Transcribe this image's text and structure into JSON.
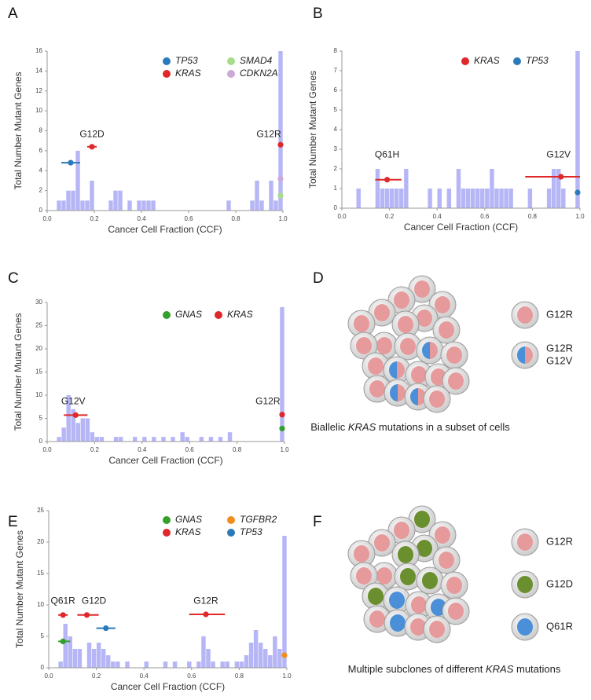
{
  "chart_data": [
    {
      "type": "histogram",
      "panel": "A",
      "xlabel": "Cancer Cell Fraction (CCF)",
      "ylabel": "Total Number Mutant Genes",
      "color": "#b6b6f6",
      "bins": [
        0,
        0.02,
        0.04,
        0.06,
        0.08,
        0.1,
        0.12,
        0.14,
        0.16,
        0.18,
        0.2,
        0.22,
        0.24,
        0.26,
        0.28,
        0.3,
        0.32,
        0.34,
        0.36,
        0.38,
        0.4,
        0.42,
        0.44,
        0.46,
        0.48,
        0.5,
        0.52,
        0.54,
        0.56,
        0.58,
        0.6,
        0.62,
        0.64,
        0.66,
        0.68,
        0.7,
        0.72,
        0.74,
        0.76,
        0.78,
        0.8,
        0.82,
        0.84,
        0.86,
        0.88,
        0.9,
        0.92,
        0.94,
        0.96,
        0.98,
        1
      ],
      "values": [
        0,
        0,
        1,
        1,
        2,
        2,
        6,
        1,
        1,
        3,
        0,
        0,
        0,
        1,
        2,
        2,
        0,
        1,
        0,
        1,
        1,
        1,
        1,
        0,
        0,
        0,
        0,
        0,
        0,
        0,
        0,
        0,
        0,
        0,
        0,
        0,
        0,
        0,
        1,
        0,
        0,
        0,
        0,
        1,
        3,
        1,
        0,
        3,
        1,
        16
      ],
      "xlim": [
        0,
        1
      ],
      "ylim": [
        0,
        16
      ],
      "xticks": [
        {
          "value": 0,
          "label": "0.0"
        },
        0.2,
        0.4,
        0.6,
        0.8,
        {
          "value": 1,
          "label": "1.0"
        }
      ],
      "yticks": [
        0,
        2,
        4,
        6,
        8,
        10,
        12,
        14,
        16
      ],
      "series": [
        {
          "name": "TP53",
          "color": "#2b7bba",
          "points": [
            {
              "x": 0.1,
              "y": 4.8,
              "xmin": 0.06,
              "xmax": 0.14
            }
          ]
        },
        {
          "name": "KRAS",
          "color": "#e0282b",
          "points": [
            {
              "x": 0.19,
              "y": 6.4,
              "xmin": 0.17,
              "xmax": 0.21
            },
            {
              "x": 0.99,
              "y": 6.6
            }
          ]
        },
        {
          "name": "SMAD4",
          "color": "#a8dc8c",
          "points": [
            {
              "x": 0.99,
              "y": 1.5
            }
          ]
        },
        {
          "name": "CDKN2A",
          "color": "#cba9d8",
          "points": [
            {
              "x": 0.99,
              "y": 3.2
            }
          ]
        }
      ],
      "annotations": [
        {
          "text": "G12D",
          "x": 0.19,
          "y": 7.6
        },
        {
          "text": "G12R",
          "x": 0.94,
          "y": 7.6
        }
      ]
    },
    {
      "type": "histogram",
      "panel": "B",
      "xlabel": "Cancer Cell Fraction (CCF)",
      "ylabel": "Total Number Mutant Genes",
      "color": "#b6b6f6",
      "bins": [
        0,
        0.02,
        0.04,
        0.06,
        0.08,
        0.1,
        0.12,
        0.14,
        0.16,
        0.18,
        0.2,
        0.22,
        0.24,
        0.26,
        0.28,
        0.3,
        0.32,
        0.34,
        0.36,
        0.38,
        0.4,
        0.42,
        0.44,
        0.46,
        0.48,
        0.5,
        0.52,
        0.54,
        0.56,
        0.58,
        0.6,
        0.62,
        0.64,
        0.66,
        0.68,
        0.7,
        0.72,
        0.74,
        0.76,
        0.78,
        0.8,
        0.82,
        0.84,
        0.86,
        0.88,
        0.9,
        0.92,
        0.94,
        0.96,
        0.98,
        1
      ],
      "values": [
        0,
        0,
        0,
        1,
        0,
        0,
        0,
        2,
        1,
        1,
        1,
        1,
        1,
        2,
        0,
        0,
        0,
        0,
        1,
        0,
        1,
        0,
        1,
        0,
        2,
        1,
        1,
        1,
        1,
        1,
        1,
        2,
        1,
        1,
        1,
        1,
        0,
        0,
        0,
        1,
        0,
        0,
        0,
        1,
        2,
        2,
        1,
        0,
        0,
        8
      ],
      "xlim": [
        0,
        1
      ],
      "ylim": [
        0,
        8
      ],
      "xticks": [
        {
          "value": 0,
          "label": "0.0"
        },
        0.2,
        0.4,
        0.6,
        0.8,
        {
          "value": 1,
          "label": "1.0"
        }
      ],
      "yticks": [
        0,
        1,
        2,
        3,
        4,
        5,
        6,
        7,
        8
      ],
      "series": [
        {
          "name": "KRAS",
          "color": "#e0282b",
          "points": [
            {
              "x": 0.19,
              "y": 1.45,
              "xmin": 0.14,
              "xmax": 0.25
            },
            {
              "x": 0.92,
              "y": 1.6,
              "xmin": 0.77,
              "xmax": 1
            }
          ]
        },
        {
          "name": "TP53",
          "color": "#2b7bba",
          "points": [
            {
              "x": 0.99,
              "y": 0.8
            }
          ]
        }
      ],
      "annotations": [
        {
          "text": "Q61H",
          "x": 0.19,
          "y": 2.7
        },
        {
          "text": "G12V",
          "x": 0.91,
          "y": 2.7
        }
      ]
    },
    {
      "type": "histogram",
      "panel": "C",
      "xlabel": "Cancer Cell Fraction (CCF)",
      "ylabel": "Total Number Mutant Genes",
      "color": "#b6b6f6",
      "bins": [
        0,
        0.02,
        0.04,
        0.06,
        0.08,
        0.1,
        0.12,
        0.14,
        0.16,
        0.18,
        0.2,
        0.22,
        0.24,
        0.26,
        0.28,
        0.3,
        0.32,
        0.34,
        0.36,
        0.38,
        0.4,
        0.42,
        0.44,
        0.46,
        0.48,
        0.5,
        0.52,
        0.54,
        0.56,
        0.58,
        0.6,
        0.62,
        0.64,
        0.66,
        0.68,
        0.7,
        0.72,
        0.74,
        0.76,
        0.78,
        0.8,
        0.82,
        0.84,
        0.86,
        0.88,
        0.9,
        0.92,
        0.94,
        0.96,
        0.98,
        1
      ],
      "values": [
        0,
        0,
        1,
        3,
        10,
        7,
        4,
        5,
        5,
        2,
        1,
        1,
        0,
        0,
        1,
        1,
        0,
        0,
        1,
        0,
        1,
        0,
        1,
        0,
        1,
        0,
        1,
        0,
        2,
        1,
        0,
        0,
        1,
        0,
        1,
        0,
        1,
        0,
        2,
        0,
        0,
        0,
        0,
        0,
        0,
        0,
        0,
        0,
        0,
        29
      ],
      "xlim": [
        0,
        1
      ],
      "ylim": [
        0,
        30
      ],
      "xticks": [
        {
          "value": 0,
          "label": "0.0"
        },
        0.2,
        0.4,
        0.6,
        0.8,
        {
          "value": 1,
          "label": "1.0"
        }
      ],
      "yticks": [
        0,
        5,
        10,
        15,
        20,
        25,
        30
      ],
      "series": [
        {
          "name": "GNAS",
          "color": "#33a02c",
          "points": [
            {
              "x": 0.99,
              "y": 2.8
            }
          ]
        },
        {
          "name": "KRAS",
          "color": "#e0282b",
          "points": [
            {
              "x": 0.12,
              "y": 5.7,
              "xmin": 0.07,
              "xmax": 0.17
            },
            {
              "x": 0.99,
              "y": 5.8
            }
          ]
        }
      ],
      "annotations": [
        {
          "text": "G12V",
          "x": 0.11,
          "y": 8.6
        },
        {
          "text": "G12R",
          "x": 0.93,
          "y": 8.6
        }
      ]
    },
    {
      "type": "histogram",
      "panel": "E",
      "xlabel": "Cancer Cell Fraction (CCF)",
      "ylabel": "Total Number Mutant Genes",
      "color": "#b6b6f6",
      "bins": [
        0,
        0.02,
        0.04,
        0.06,
        0.08,
        0.1,
        0.12,
        0.14,
        0.16,
        0.18,
        0.2,
        0.22,
        0.24,
        0.26,
        0.28,
        0.3,
        0.32,
        0.34,
        0.36,
        0.38,
        0.4,
        0.42,
        0.44,
        0.46,
        0.48,
        0.5,
        0.52,
        0.54,
        0.56,
        0.58,
        0.6,
        0.62,
        0.64,
        0.66,
        0.68,
        0.7,
        0.72,
        0.74,
        0.76,
        0.78,
        0.8,
        0.82,
        0.84,
        0.86,
        0.88,
        0.9,
        0.92,
        0.94,
        0.96,
        0.98,
        1
      ],
      "values": [
        0,
        0,
        1,
        7,
        5,
        3,
        3,
        0,
        4,
        3,
        4,
        3,
        2,
        1,
        1,
        0,
        1,
        0,
        0,
        0,
        1,
        0,
        0,
        0,
        1,
        0,
        1,
        0,
        0,
        1,
        0,
        1,
        5,
        3,
        1,
        0,
        1,
        1,
        0,
        1,
        1,
        2,
        4,
        6,
        4,
        3,
        2,
        5,
        3,
        21
      ],
      "xlim": [
        0,
        1
      ],
      "ylim": [
        0,
        25
      ],
      "xticks": [
        {
          "value": 0,
          "label": "0.0"
        },
        0.2,
        0.4,
        0.6,
        0.8,
        {
          "value": 1,
          "label": "1.0"
        }
      ],
      "yticks": [
        0,
        5,
        10,
        15,
        20,
        25
      ],
      "series": [
        {
          "name": "GNAS",
          "color": "#33a02c",
          "points": [
            {
              "x": 0.06,
              "y": 4.2,
              "xmin": 0.04,
              "xmax": 0.09
            }
          ]
        },
        {
          "name": "KRAS",
          "color": "#e0282b",
          "points": [
            {
              "x": 0.06,
              "y": 8.4,
              "xmin": 0.04,
              "xmax": 0.08
            },
            {
              "x": 0.16,
              "y": 8.4,
              "xmin": 0.12,
              "xmax": 0.21
            },
            {
              "x": 0.66,
              "y": 8.5,
              "xmin": 0.59,
              "xmax": 0.74
            }
          ]
        },
        {
          "name": "TGFBR2",
          "color": "#f28e1c",
          "points": [
            {
              "x": 0.99,
              "y": 2
            }
          ]
        },
        {
          "name": "TP53",
          "color": "#2b7bba",
          "points": [
            {
              "x": 0.24,
              "y": 6.3,
              "xmin": 0.2,
              "xmax": 0.28
            }
          ]
        }
      ],
      "annotations": [
        {
          "text": "Q61R",
          "x": 0.06,
          "y": 10.6
        },
        {
          "text": "G12D",
          "x": 0.19,
          "y": 10.6
        },
        {
          "text": "G12R",
          "x": 0.66,
          "y": 10.6
        }
      ]
    }
  ],
  "diagrams": [
    {
      "panel": "D",
      "legend": [
        {
          "lines": [
            "G12R"
          ]
        },
        {
          "lines": [
            "G12R",
            "G12V"
          ]
        }
      ],
      "caption": [
        "Biallelic ",
        "KRAS",
        " mutations in a subset of cells"
      ]
    },
    {
      "panel": "F",
      "legend": [
        {
          "lines": [
            "G12R"
          ]
        },
        {
          "lines": [
            "G12D"
          ]
        },
        {
          "lines": [
            "Q61R"
          ]
        }
      ],
      "caption": [
        "Multiple subclones of different ",
        "KRAS",
        " mutations"
      ]
    }
  ]
}
